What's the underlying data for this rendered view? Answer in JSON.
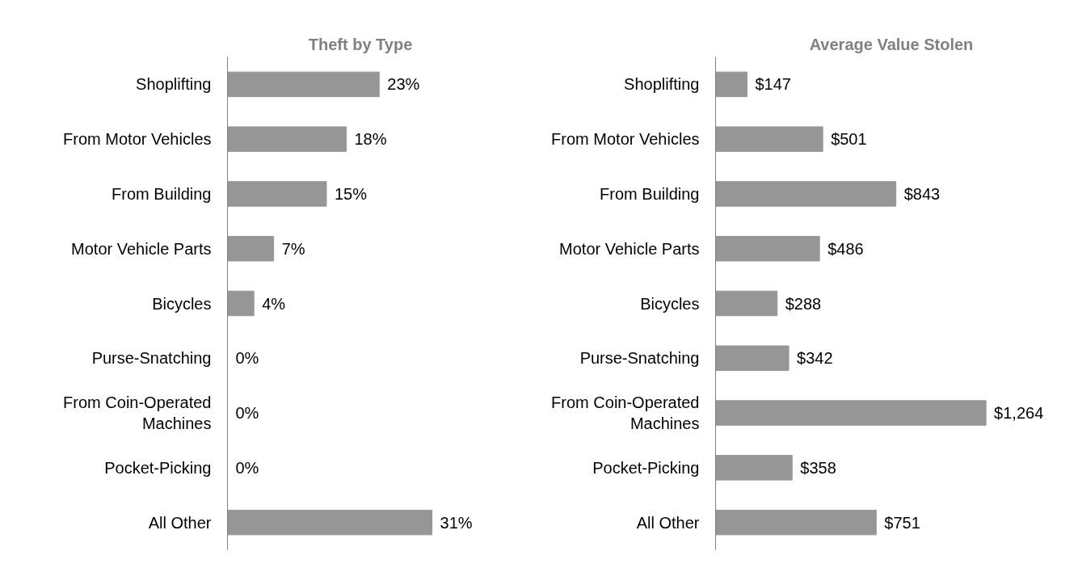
{
  "chart_data": [
    {
      "type": "bar",
      "orientation": "horizontal",
      "title": "Theft by Type",
      "color": "#969696",
      "categories": [
        "Shoplifting",
        "From Motor Vehicles",
        "From Building",
        "Motor Vehicle Parts",
        "Bicycles",
        "Purse-Snatching",
        "From Coin-Operated Machines",
        "Pocket-Picking",
        "All Other"
      ],
      "values": [
        23,
        18,
        15,
        7,
        4,
        0,
        0,
        0,
        31
      ],
      "value_labels": [
        "23%",
        "18%",
        "15%",
        "7%",
        "4%",
        "0%",
        "0%",
        "0%",
        "31%"
      ]
    },
    {
      "type": "bar",
      "orientation": "horizontal",
      "title": "Average Value Stolen",
      "color": "#969696",
      "categories": [
        "Shoplifting",
        "From Motor Vehicles",
        "From Building",
        "Motor Vehicle Parts",
        "Bicycles",
        "Purse-Snatching",
        "From Coin-Operated Machines",
        "Pocket-Picking",
        "All Other"
      ],
      "values": [
        147,
        501,
        843,
        486,
        288,
        342,
        1264,
        358,
        751
      ],
      "value_labels": [
        "$147",
        "$501",
        "$843",
        "$486",
        "$288",
        "$342",
        "$1,264",
        "$358",
        "$751"
      ]
    }
  ]
}
